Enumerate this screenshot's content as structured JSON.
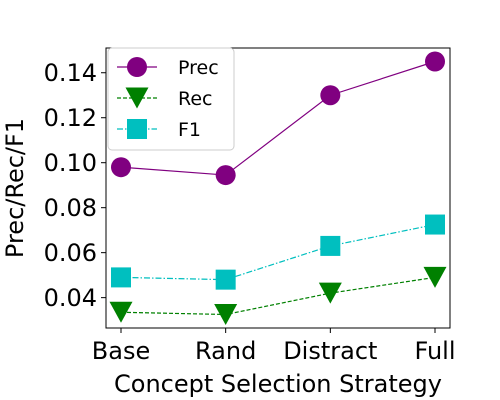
{
  "chart_data": {
    "type": "line",
    "categories": [
      "Base",
      "Rand",
      "Distract",
      "Full"
    ],
    "xlabel": "Concept Selection Strategy",
    "ylabel": "Prec/Rec/F1",
    "ylim": [
      0.0265,
      0.151
    ],
    "yticks": [
      0.04,
      0.06,
      0.08,
      0.1,
      0.12,
      0.14
    ],
    "ytick_labels": [
      "0.04",
      "0.06",
      "0.08",
      "0.10",
      "0.12",
      "0.14"
    ],
    "grid": false,
    "legend_position": "upper left",
    "series": [
      {
        "name": "Prec",
        "values": [
          0.098,
          0.0945,
          0.13,
          0.145
        ],
        "color": "#800080",
        "marker": "circle",
        "line_style": "solid"
      },
      {
        "name": "Rec",
        "values": [
          0.0335,
          0.0325,
          0.042,
          0.049
        ],
        "color": "#008000",
        "marker": "triangle-down",
        "line_style": "dashed"
      },
      {
        "name": "F1",
        "values": [
          0.049,
          0.048,
          0.063,
          0.0725
        ],
        "color": "#00bfbf",
        "marker": "square",
        "line_style": "dashdot"
      }
    ]
  }
}
